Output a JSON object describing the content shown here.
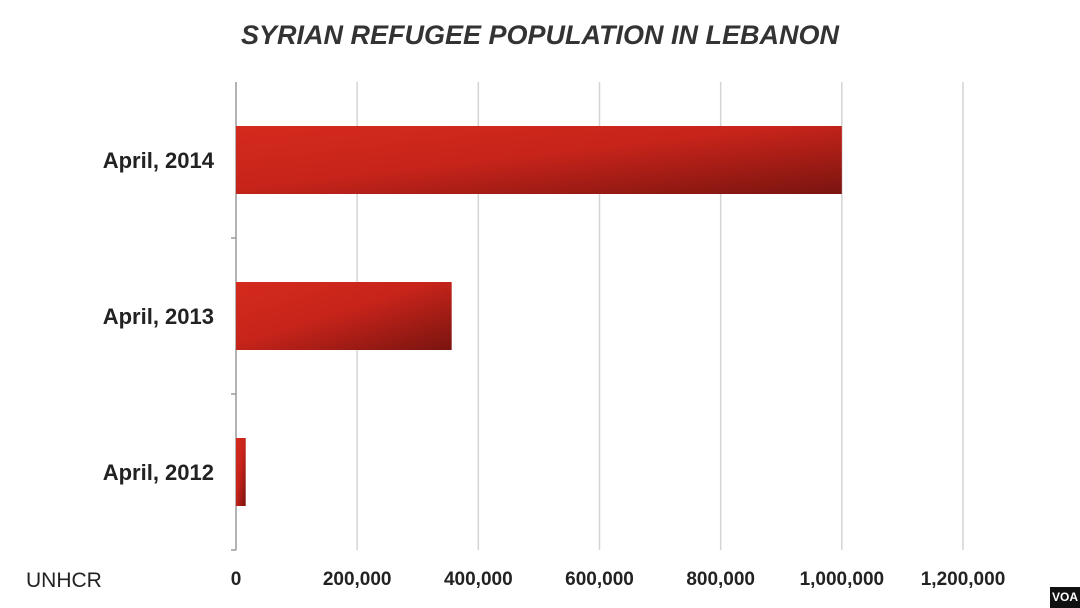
{
  "chart_data": {
    "type": "bar",
    "orientation": "horizontal",
    "title": "SYRIAN REFUGEE POPULATION IN LEBANON",
    "categories": [
      "April, 2014",
      "April, 2013",
      "April, 2012"
    ],
    "values": [
      1000000,
      356000,
      16000
    ],
    "xlim": [
      0,
      1200000
    ],
    "x_ticks": [
      "0",
      "200,000",
      "400,000",
      "600,000",
      "800,000",
      "1,000,000",
      "1,200,000"
    ],
    "x_tick_values": [
      0,
      200000,
      400000,
      600000,
      800000,
      1000000,
      1200000
    ],
    "grid": true,
    "bar_color": "#d42a1e",
    "bar_color_dark": "#7a1410"
  },
  "source": "UNHCR",
  "badge": "VOA"
}
